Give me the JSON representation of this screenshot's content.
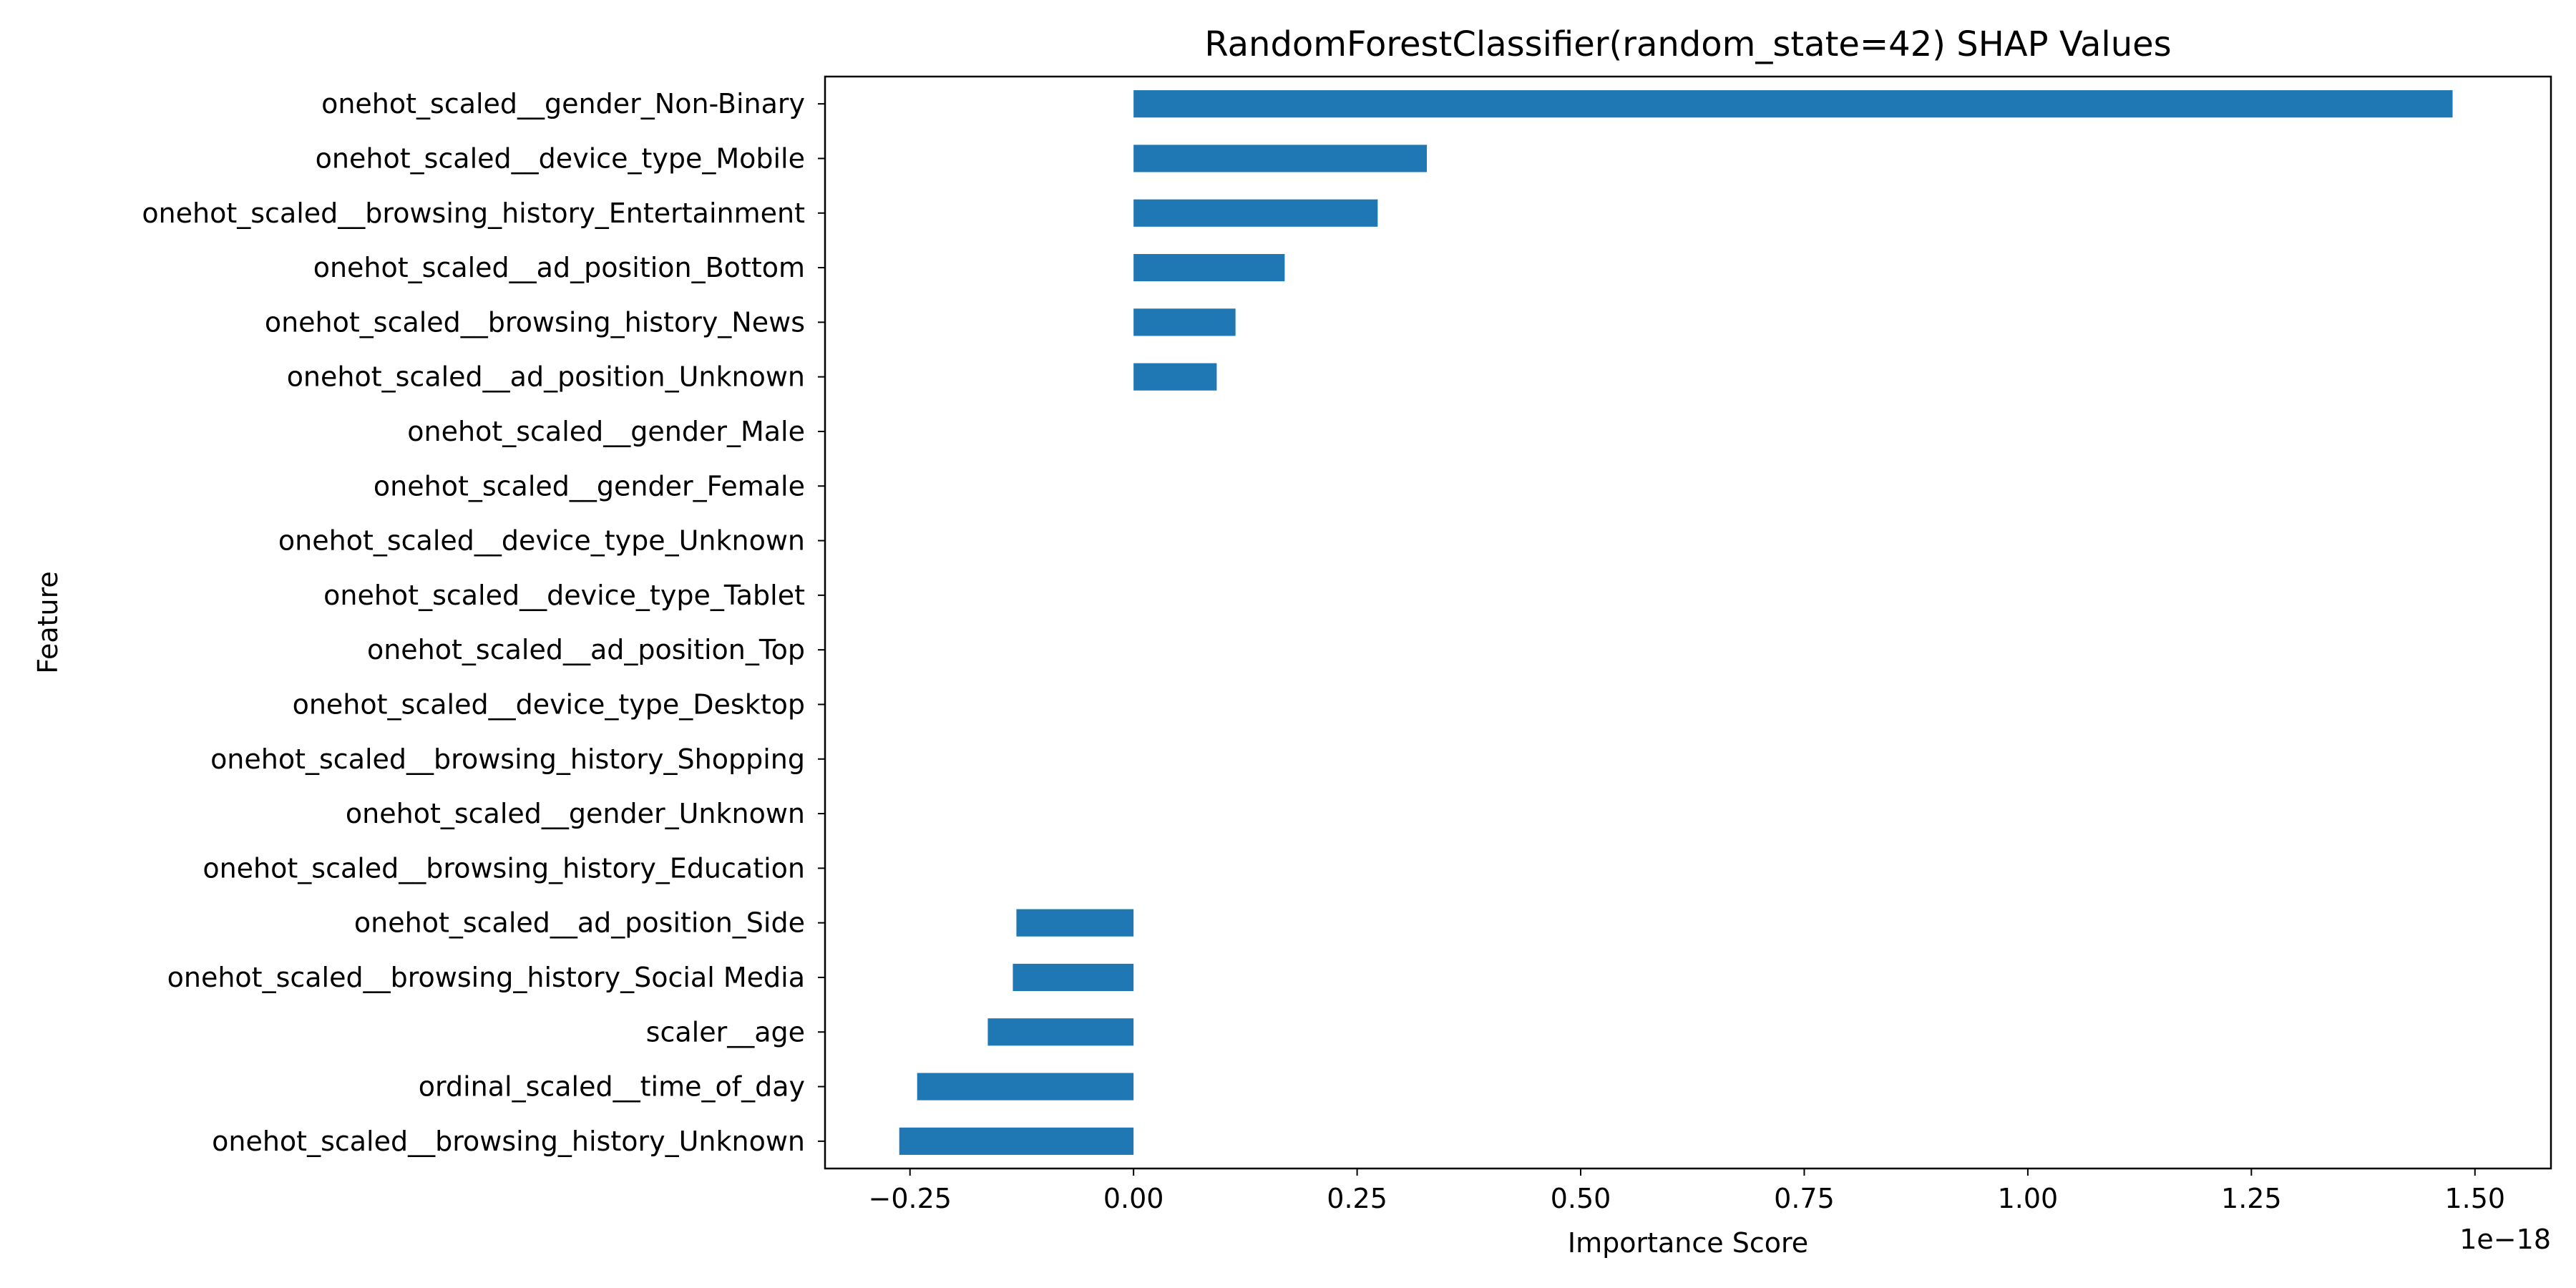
{
  "chart_data": {
    "type": "bar",
    "orientation": "horizontal",
    "title": "RandomForestClassifier(random_state=42) SHAP Values",
    "xlabel": "Importance Score",
    "ylabel": "Feature",
    "x_offset_text": "1e−18",
    "xlim": [
      -0.345,
      1.585
    ],
    "grid": false,
    "bar_color": "#1f77b4",
    "xticks": [
      {
        "value": -0.25,
        "label": "−0.25"
      },
      {
        "value": 0.0,
        "label": "0.00"
      },
      {
        "value": 0.25,
        "label": "0.25"
      },
      {
        "value": 0.5,
        "label": "0.50"
      },
      {
        "value": 0.75,
        "label": "0.75"
      },
      {
        "value": 1.0,
        "label": "1.00"
      },
      {
        "value": 1.25,
        "label": "1.25"
      },
      {
        "value": 1.5,
        "label": "1.50"
      }
    ],
    "categories": [
      "onehot_scaled__gender_Non-Binary",
      "onehot_scaled__device_type_Mobile",
      "onehot_scaled__browsing_history_Entertainment",
      "onehot_scaled__ad_position_Bottom",
      "onehot_scaled__browsing_history_News",
      "onehot_scaled__ad_position_Unknown",
      "onehot_scaled__gender_Male",
      "onehot_scaled__gender_Female",
      "onehot_scaled__device_type_Unknown",
      "onehot_scaled__device_type_Tablet",
      "onehot_scaled__ad_position_Top",
      "onehot_scaled__device_type_Desktop",
      "onehot_scaled__browsing_history_Shopping",
      "onehot_scaled__gender_Unknown",
      "onehot_scaled__browsing_history_Education",
      "onehot_scaled__ad_position_Side",
      "onehot_scaled__browsing_history_Social Media",
      "scaler__age",
      "ordinal_scaled__time_of_day",
      "onehot_scaled__browsing_history_Unknown"
    ],
    "values": [
      1.475,
      0.328,
      0.273,
      0.169,
      0.114,
      0.093,
      0,
      0,
      0,
      0,
      0,
      0,
      0,
      0,
      0,
      -0.131,
      -0.135,
      -0.163,
      -0.242,
      -0.262
    ]
  }
}
